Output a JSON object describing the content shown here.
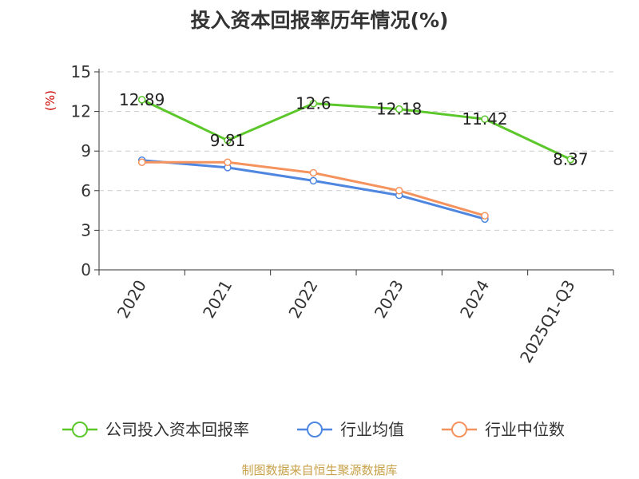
{
  "chart_data": {
    "type": "line",
    "title": "投入资本回报率历年情况(%)",
    "ylabel": "(%)",
    "xlabel": "",
    "categories": [
      "2020",
      "2021",
      "2022",
      "2023",
      "2024",
      "2025Q1-Q3"
    ],
    "ylim": [
      0,
      15
    ],
    "yticks": [
      0,
      3,
      6,
      9,
      12,
      15
    ],
    "grid": true,
    "legend_position": "bottom",
    "series": [
      {
        "name": "公司投入资本回报率",
        "color": "#5cc72b",
        "values": [
          12.89,
          9.81,
          12.6,
          12.18,
          11.42,
          8.37
        ],
        "labels": [
          "12.89",
          "9.81",
          "12.6",
          "12.18",
          "11.42",
          "8.37"
        ]
      },
      {
        "name": "行业均值",
        "color": "#4e86e0",
        "values": [
          8.3,
          7.75,
          6.75,
          5.65,
          3.85,
          null
        ]
      },
      {
        "name": "行业中位数",
        "color": "#f4935e",
        "values": [
          8.15,
          8.15,
          7.35,
          6.0,
          4.1,
          null
        ]
      }
    ],
    "source": "制图数据来自恒生聚源数据库"
  }
}
